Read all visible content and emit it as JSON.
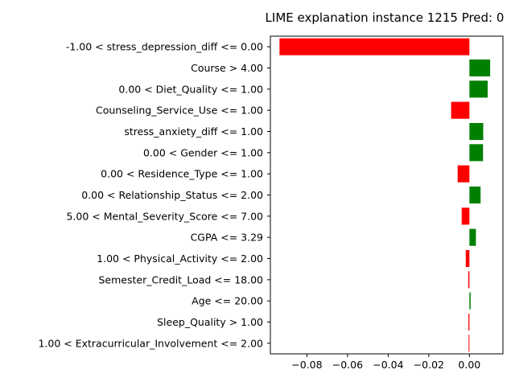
{
  "chart_data": {
    "type": "bar",
    "orientation": "horizontal",
    "title": "LIME explanation instance 1215 Pred: 0",
    "xlabel": "",
    "ylabel": "",
    "xlim": [
      -0.098,
      0.0165
    ],
    "xticks": [
      -0.08,
      -0.06,
      -0.04,
      -0.02,
      0.0
    ],
    "xtick_labels": [
      "−0.08",
      "−0.06",
      "−0.04",
      "−0.02",
      "0.00"
    ],
    "grid": false,
    "colors": {
      "positive": "#008000",
      "negative": "#ff0000"
    },
    "bars": [
      {
        "label": "-1.00 < stress_depression_diff <= 0.00",
        "value": -0.0935
      },
      {
        "label": "Course > 4.00",
        "value": 0.0102
      },
      {
        "label": "0.00 < Diet_Quality <= 1.00",
        "value": 0.009
      },
      {
        "label": "Counseling_Service_Use <= 1.00",
        "value": -0.009
      },
      {
        "label": "stress_anxiety_diff <= 1.00",
        "value": 0.0068
      },
      {
        "label": "0.00 < Gender <= 1.00",
        "value": 0.0067
      },
      {
        "label": "0.00 < Residence_Type <= 1.00",
        "value": -0.0058
      },
      {
        "label": "0.00 < Relationship_Status <= 2.00",
        "value": 0.0055
      },
      {
        "label": "5.00 < Mental_Severity_Score <= 7.00",
        "value": -0.0038
      },
      {
        "label": "CGPA <= 3.29",
        "value": 0.0032
      },
      {
        "label": "1.00 < Physical_Activity <= 2.00",
        "value": -0.0018
      },
      {
        "label": "Semester_Credit_Load <= 18.00",
        "value": -0.0006
      },
      {
        "label": "Age <= 20.00",
        "value": 0.0006
      },
      {
        "label": "Sleep_Quality > 1.00",
        "value": -0.0005
      },
      {
        "label": "1.00 < Extracurricular_Involvement <= 2.00",
        "value": -0.0004
      }
    ]
  }
}
